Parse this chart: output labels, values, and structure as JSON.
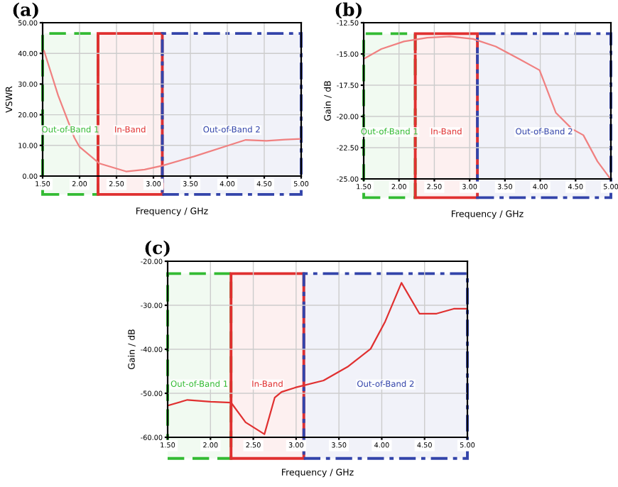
{
  "chart_data": [
    {
      "type": "line",
      "title": "(a)",
      "xlabel": "Frequency / GHz",
      "ylabel": "VSWR",
      "series": [
        {
          "color": "#f08080",
          "x": [
            1.52,
            1.71,
            1.93,
            2.0,
            2.27,
            2.63,
            2.88,
            3.12,
            3.55,
            4.04,
            4.25,
            4.53,
            4.78,
            5.0
          ],
          "values": [
            40.8,
            26.3,
            12.5,
            9.5,
            4.1,
            1.5,
            2.1,
            3.4,
            6.4,
            10.2,
            11.8,
            11.5,
            11.9,
            12.1
          ]
        }
      ],
      "xlim": [
        1.5,
        5.0
      ],
      "ylim": [
        0,
        50
      ],
      "xticks": [
        {
          "value": 1.5,
          "label": "1.50"
        },
        {
          "value": 2.0,
          "label": "2.00"
        },
        {
          "value": 2.5,
          "label": "2.50"
        },
        {
          "value": 3.0,
          "label": "3.00"
        },
        {
          "value": 3.5,
          "label": "3.50"
        },
        {
          "value": 4.0,
          "label": "4.00"
        },
        {
          "value": 4.5,
          "label": "4.50"
        },
        {
          "value": 5.0,
          "label": "5.00"
        }
      ],
      "yticks": [
        {
          "value": 0,
          "label": "0.00"
        },
        {
          "value": 10,
          "label": "10.00"
        },
        {
          "value": 20,
          "label": "20.00"
        },
        {
          "value": 30,
          "label": "30.00"
        },
        {
          "value": 40,
          "label": "40.00"
        },
        {
          "value": 50,
          "label": "50.00"
        }
      ],
      "bands": [
        {
          "axis": "x",
          "from": 1.5,
          "to": 2.25,
          "label": "Out-of-Band 1",
          "color": "#33bb33"
        },
        {
          "axis": "x",
          "from": 2.25,
          "to": 3.12,
          "label": "In-Band",
          "color": "#e03030"
        },
        {
          "axis": "x",
          "from": 3.12,
          "to": 5.0,
          "label": "Out-of-Band 2",
          "color": "#3344aa"
        }
      ],
      "grid": true
    },
    {
      "type": "line",
      "title": "(b)",
      "xlabel": "Frequency / GHz",
      "ylabel": "Gain / dB",
      "series": [
        {
          "color": "#f08080",
          "x": [
            1.5,
            1.75,
            2.07,
            2.4,
            2.72,
            3.05,
            3.37,
            3.7,
            3.99,
            4.22,
            4.45,
            4.61,
            4.81,
            4.98
          ],
          "values": [
            -15.4,
            -14.6,
            -14.0,
            -13.7,
            -13.6,
            -13.8,
            -14.4,
            -15.4,
            -16.3,
            -19.7,
            -21.0,
            -21.5,
            -23.6,
            -24.9
          ]
        }
      ],
      "xlim": [
        1.5,
        5.0
      ],
      "ylim": [
        -25,
        -12.5
      ],
      "xticks": [
        {
          "value": 1.5,
          "label": "1.50"
        },
        {
          "value": 2.0,
          "label": "2.00"
        },
        {
          "value": 2.5,
          "label": "2.50"
        },
        {
          "value": 3.0,
          "label": "3.00"
        },
        {
          "value": 3.5,
          "label": "3.50"
        },
        {
          "value": 4.0,
          "label": "4.00"
        },
        {
          "value": 4.5,
          "label": "4.50"
        },
        {
          "value": 5.0,
          "label": "5.00"
        }
      ],
      "yticks": [
        {
          "value": -25,
          "label": "-25.00"
        },
        {
          "value": -22.5,
          "label": "-22.50"
        },
        {
          "value": -20,
          "label": "-20.00"
        },
        {
          "value": -17.5,
          "label": "-17.50"
        },
        {
          "value": -15,
          "label": "-15.00"
        },
        {
          "value": -12.5,
          "label": "-12.50"
        }
      ],
      "bands": [
        {
          "axis": "x",
          "from": 1.5,
          "to": 2.23,
          "label": "Out-of-Band 1",
          "color": "#33bb33"
        },
        {
          "axis": "x",
          "from": 2.23,
          "to": 3.11,
          "label": "In-Band",
          "color": "#e03030"
        },
        {
          "axis": "x",
          "from": 3.11,
          "to": 5.0,
          "label": "Out-of-Band 2",
          "color": "#3344aa"
        }
      ],
      "grid": true
    },
    {
      "type": "line",
      "title": "(c)",
      "xlabel": "Frequency / GHz",
      "ylabel": "Gain / dB",
      "series": [
        {
          "color": "#e03030",
          "x": [
            1.5,
            1.73,
            2.0,
            2.24,
            2.41,
            2.63,
            2.75,
            2.83,
            2.99,
            3.32,
            3.6,
            3.87,
            4.04,
            4.23,
            4.44,
            4.64,
            4.84,
            5.0
          ],
          "values": [
            -52.8,
            -51.5,
            -51.9,
            -52.1,
            -56.6,
            -59.3,
            -51.0,
            -49.7,
            -48.7,
            -47.1,
            -44.0,
            -39.9,
            -33.7,
            -24.9,
            -31.9,
            -31.9,
            -30.8,
            -30.8
          ]
        }
      ],
      "xlim": [
        1.5,
        5.0
      ],
      "ylim": [
        -60,
        -20
      ],
      "xticks": [
        {
          "value": 1.5,
          "label": "1.50"
        },
        {
          "value": 2.0,
          "label": "2.00"
        },
        {
          "value": 2.5,
          "label": "2.50"
        },
        {
          "value": 3.0,
          "label": "3.00"
        },
        {
          "value": 3.5,
          "label": "3.50"
        },
        {
          "value": 4.0,
          "label": "4.00"
        },
        {
          "value": 4.5,
          "label": "4.50"
        },
        {
          "value": 5.0,
          "label": "5.00"
        }
      ],
      "yticks": [
        {
          "value": -60,
          "label": "-60.00"
        },
        {
          "value": -50,
          "label": "-50.00"
        },
        {
          "value": -40,
          "label": "-40.00"
        },
        {
          "value": -30,
          "label": "-30.00"
        },
        {
          "value": -20,
          "label": "-20.00"
        }
      ],
      "bands": [
        {
          "axis": "x",
          "from": 1.5,
          "to": 2.24,
          "label": "Out-of-Band 1",
          "color": "#33bb33"
        },
        {
          "axis": "x",
          "from": 2.24,
          "to": 3.09,
          "label": "In-Band",
          "color": "#e03030"
        },
        {
          "axis": "x",
          "from": 3.09,
          "to": 5.0,
          "label": "Out-of-Band 2",
          "color": "#3344aa"
        }
      ],
      "grid": true
    }
  ]
}
